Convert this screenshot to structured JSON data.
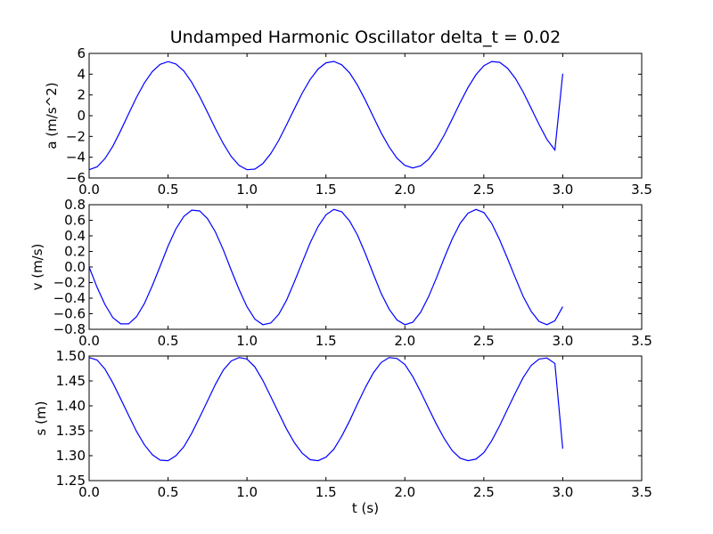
{
  "chart_data": [
    {
      "type": "line",
      "title": "Undamped Harmonic Oscillator delta_t = 0.02",
      "xlabel": "",
      "ylabel": "a (m/s^2)",
      "xlim": [
        0,
        3.5
      ],
      "ylim": [
        -6,
        6
      ],
      "xticks": [
        "0.0",
        "0.5",
        "1.0",
        "1.5",
        "2.0",
        "2.5",
        "3.0",
        "3.5"
      ],
      "yticks": [
        "6",
        "4",
        "2",
        "0",
        "−2",
        "−4",
        "−6"
      ],
      "series": [
        {
          "color": "#0000ff",
          "x": [
            0.0,
            0.05,
            0.1,
            0.15,
            0.2,
            0.25,
            0.3,
            0.35,
            0.4,
            0.45,
            0.5,
            0.55,
            0.6,
            0.65,
            0.7,
            0.75,
            0.8,
            0.85,
            0.9,
            0.95,
            1.0,
            1.05,
            1.1,
            1.15,
            1.2,
            1.25,
            1.3,
            1.35,
            1.4,
            1.45,
            1.5,
            1.55,
            1.6,
            1.65,
            1.7,
            1.75,
            1.8,
            1.85,
            1.9,
            1.95,
            2.0,
            2.05,
            2.1,
            2.15,
            2.2,
            2.25,
            2.3,
            2.35,
            2.4,
            2.45,
            2.5,
            2.55,
            2.6,
            2.65,
            2.7,
            2.75,
            2.8,
            2.85,
            2.9,
            2.95,
            3.0
          ],
          "y": [
            -5.2,
            -4.93,
            -4.14,
            -2.94,
            -1.44,
            0.18,
            1.76,
            3.15,
            4.25,
            4.95,
            5.21,
            4.98,
            4.3,
            3.22,
            1.85,
            0.32,
            -1.24,
            -2.7,
            -3.93,
            -4.79,
            -5.2,
            -5.14,
            -4.61,
            -3.67,
            -2.4,
            -0.9,
            0.66,
            2.18,
            3.49,
            4.49,
            5.09,
            5.23,
            4.9,
            4.12,
            2.94,
            1.48,
            -0.1,
            -1.65,
            -3.01,
            -4.09,
            -4.78,
            -5.03,
            -4.83,
            -4.19,
            -3.17,
            -1.84,
            -0.32,
            1.26,
            2.72,
            3.94,
            4.81,
            5.22,
            5.14,
            4.58,
            3.59,
            2.26,
            0.71,
            -0.86,
            -2.29,
            -3.3,
            4.05
          ]
        }
      ]
    },
    {
      "type": "line",
      "title": "",
      "xlabel": "",
      "ylabel": "v (m/s)",
      "xlim": [
        0,
        3.5
      ],
      "ylim": [
        -0.8,
        0.8
      ],
      "xticks": [
        "0.0",
        "0.5",
        "1.0",
        "1.5",
        "2.0",
        "2.5",
        "3.0",
        "3.5"
      ],
      "yticks": [
        "0.8",
        "0.6",
        "0.4",
        "0.2",
        "0.0",
        "−0.2",
        "−0.4",
        "−0.6",
        "−0.8"
      ],
      "series": [
        {
          "color": "#0000ff",
          "x": [
            0.0,
            0.05,
            0.1,
            0.15,
            0.2,
            0.25,
            0.3,
            0.35,
            0.4,
            0.45,
            0.5,
            0.55,
            0.6,
            0.65,
            0.7,
            0.75,
            0.8,
            0.85,
            0.9,
            0.95,
            1.0,
            1.05,
            1.1,
            1.15,
            1.2,
            1.25,
            1.3,
            1.35,
            1.4,
            1.45,
            1.5,
            1.55,
            1.6,
            1.65,
            1.7,
            1.75,
            1.8,
            1.85,
            1.9,
            1.95,
            2.0,
            2.05,
            2.1,
            2.15,
            2.2,
            2.25,
            2.3,
            2.35,
            2.4,
            2.45,
            2.5,
            2.55,
            2.6,
            2.65,
            2.7,
            2.75,
            2.8,
            2.85,
            2.9,
            2.95,
            3.0
          ],
          "y": [
            0.0,
            -0.26,
            -0.48,
            -0.65,
            -0.73,
            -0.73,
            -0.64,
            -0.47,
            -0.24,
            0.01,
            0.27,
            0.49,
            0.65,
            0.73,
            0.72,
            0.62,
            0.45,
            0.22,
            -0.04,
            -0.29,
            -0.51,
            -0.67,
            -0.74,
            -0.72,
            -0.61,
            -0.43,
            -0.19,
            0.06,
            0.31,
            0.52,
            0.67,
            0.74,
            0.71,
            0.59,
            0.41,
            0.17,
            -0.09,
            -0.34,
            -0.54,
            -0.68,
            -0.74,
            -0.71,
            -0.58,
            -0.38,
            -0.14,
            0.12,
            0.36,
            0.56,
            0.69,
            0.74,
            0.7,
            0.56,
            0.35,
            0.11,
            -0.14,
            -0.38,
            -0.57,
            -0.7,
            -0.74,
            -0.69,
            -0.51
          ]
        }
      ]
    },
    {
      "type": "line",
      "title": "",
      "xlabel": "t (s)",
      "ylabel": "s (m)",
      "xlim": [
        0,
        3.5
      ],
      "ylim": [
        1.25,
        1.5
      ],
      "xticks": [
        "0.0",
        "0.5",
        "1.0",
        "1.5",
        "2.0",
        "2.5",
        "3.0",
        "3.5"
      ],
      "yticks": [
        "1.50",
        "1.45",
        "1.40",
        "1.35",
        "1.30",
        "1.25"
      ],
      "series": [
        {
          "color": "#0000ff",
          "x": [
            0.0,
            0.05,
            0.1,
            0.15,
            0.2,
            0.25,
            0.3,
            0.35,
            0.4,
            0.45,
            0.5,
            0.55,
            0.6,
            0.65,
            0.7,
            0.75,
            0.8,
            0.85,
            0.9,
            0.95,
            1.0,
            1.05,
            1.1,
            1.15,
            1.2,
            1.25,
            1.3,
            1.35,
            1.4,
            1.45,
            1.5,
            1.55,
            1.6,
            1.65,
            1.7,
            1.75,
            1.8,
            1.85,
            1.9,
            1.95,
            2.0,
            2.05,
            2.1,
            2.15,
            2.2,
            2.25,
            2.3,
            2.35,
            2.4,
            2.45,
            2.5,
            2.55,
            2.6,
            2.65,
            2.7,
            2.75,
            2.8,
            2.85,
            2.9,
            2.95,
            3.0
          ],
          "y": [
            1.497,
            1.492,
            1.474,
            1.446,
            1.414,
            1.381,
            1.349,
            1.322,
            1.302,
            1.291,
            1.29,
            1.3,
            1.318,
            1.345,
            1.377,
            1.41,
            1.443,
            1.472,
            1.49,
            1.497,
            1.494,
            1.478,
            1.451,
            1.419,
            1.386,
            1.354,
            1.326,
            1.305,
            1.292,
            1.29,
            1.297,
            1.313,
            1.339,
            1.37,
            1.404,
            1.437,
            1.466,
            1.487,
            1.497,
            1.495,
            1.483,
            1.459,
            1.428,
            1.395,
            1.363,
            1.334,
            1.31,
            1.295,
            1.29,
            1.293,
            1.306,
            1.33,
            1.36,
            1.393,
            1.426,
            1.457,
            1.481,
            1.494,
            1.496,
            1.485,
            1.314
          ]
        }
      ]
    }
  ]
}
